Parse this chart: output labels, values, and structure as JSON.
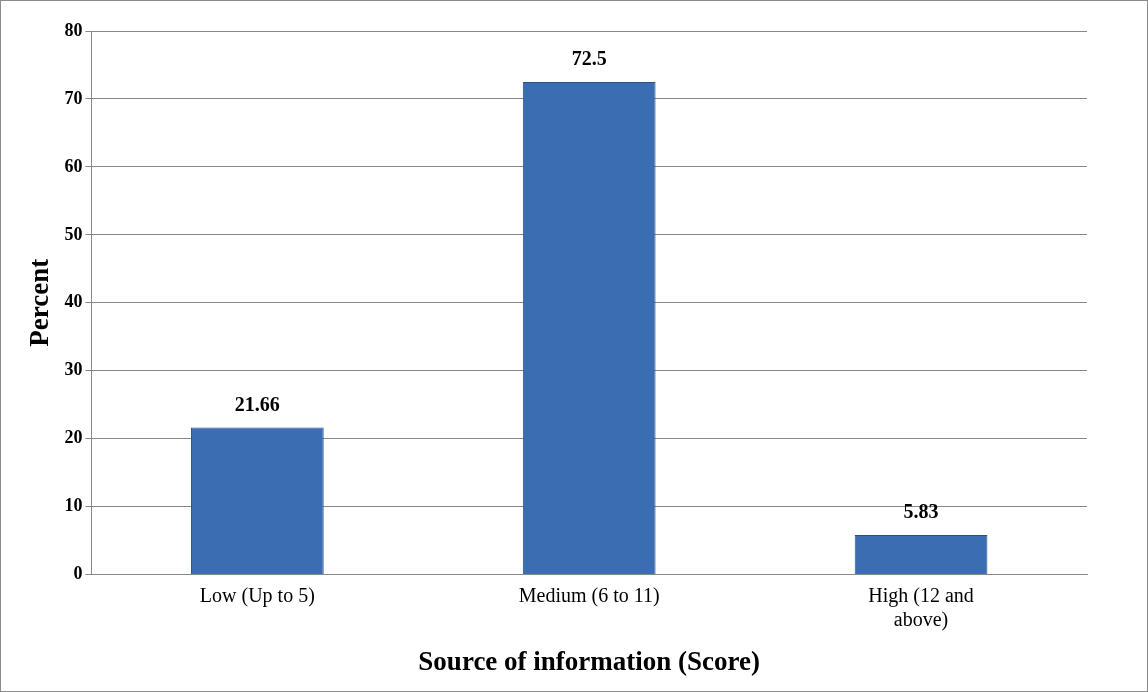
{
  "chart_data": {
    "type": "bar",
    "xlabel": "Source of information (Score)",
    "ylabel": "Percent",
    "categories": [
      "Low (Up to 5)",
      "Medium (6 to 11)",
      "High (12 and above)"
    ],
    "values": [
      21.66,
      72.5,
      5.83
    ],
    "color": "#3b6db3",
    "ylim": [
      0,
      80
    ],
    "yticks": [
      0,
      10,
      20,
      30,
      40,
      50,
      60,
      70,
      80
    ],
    "grid": "y",
    "data_labels": true,
    "legend": false
  }
}
